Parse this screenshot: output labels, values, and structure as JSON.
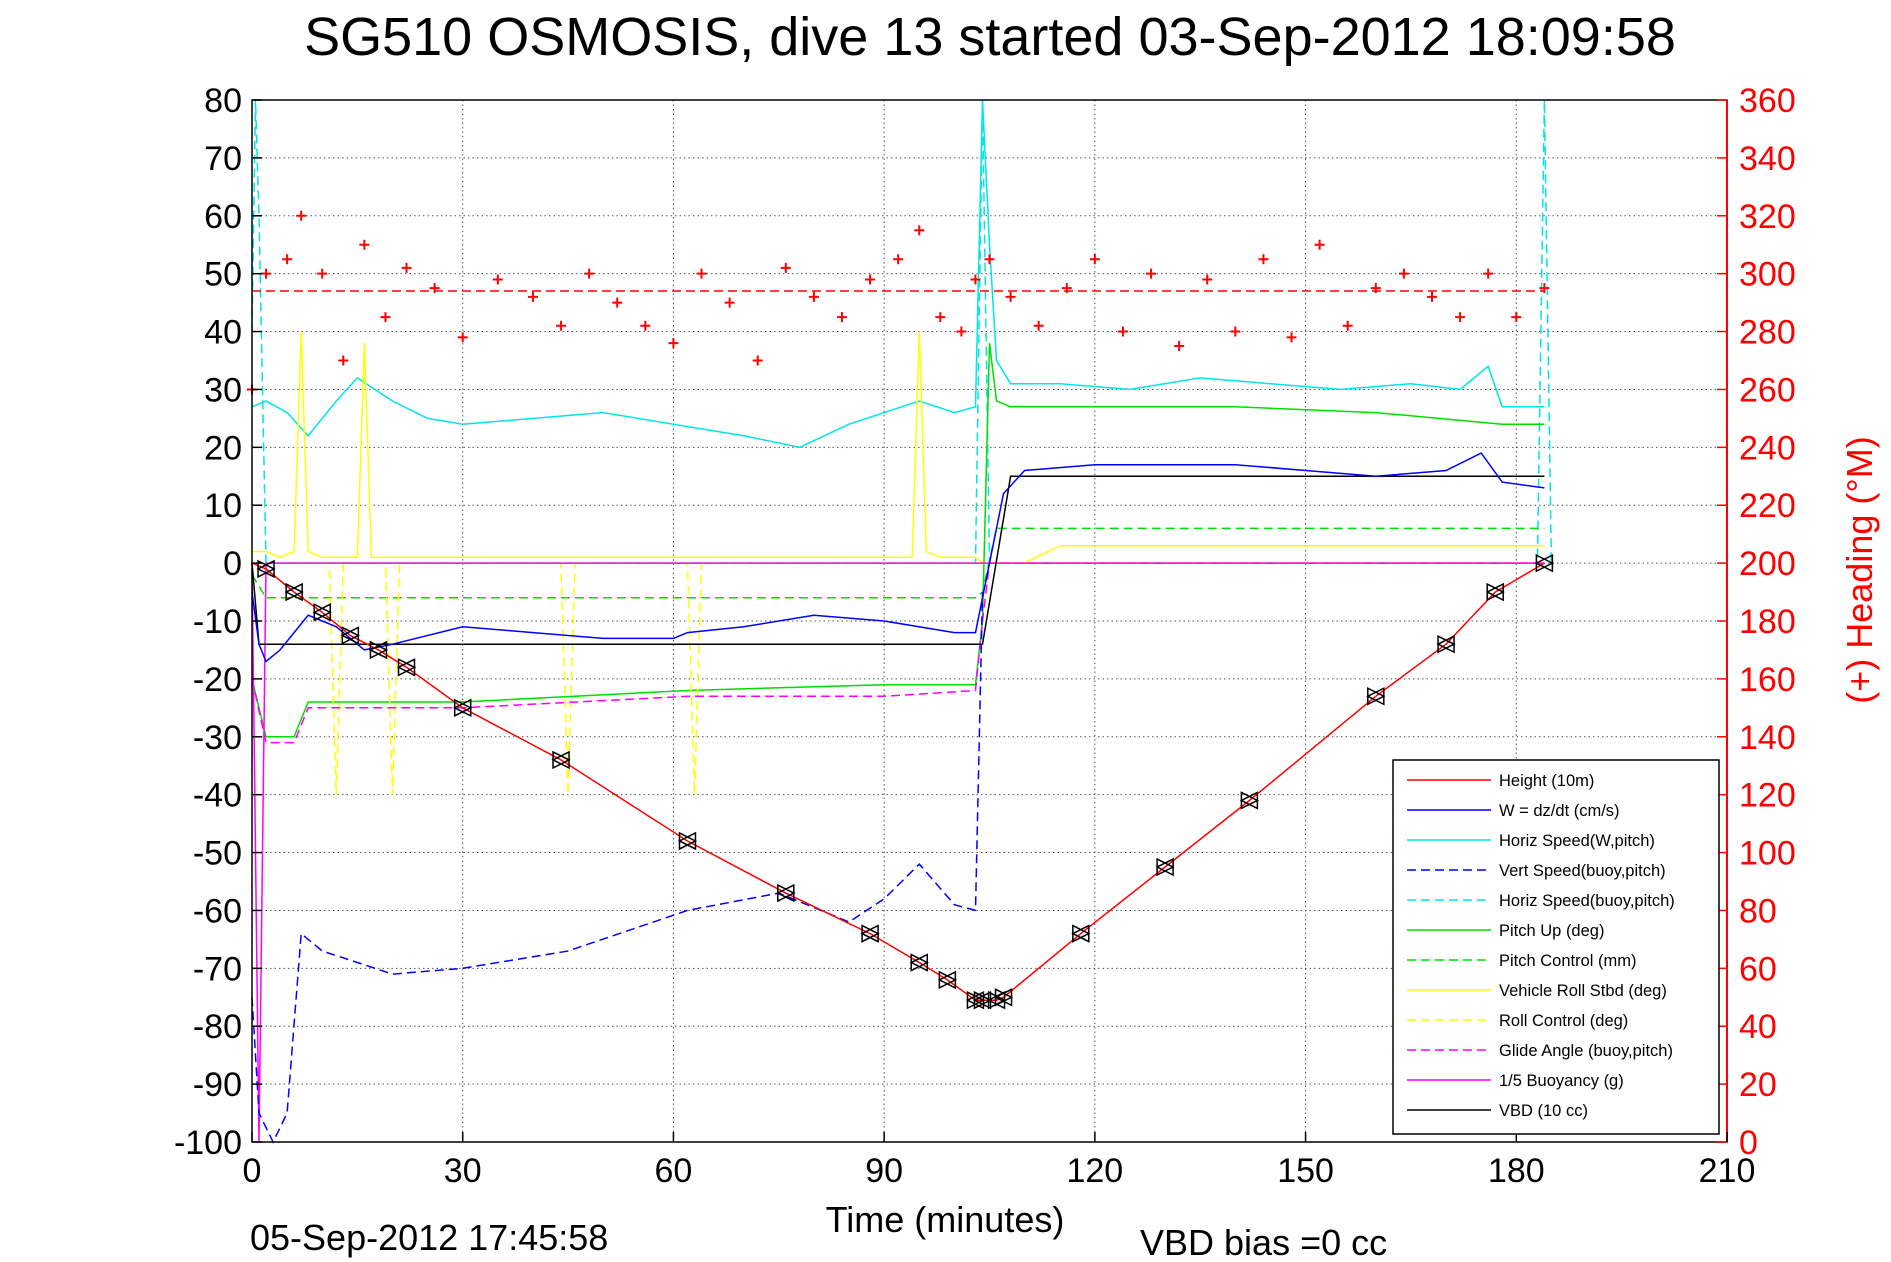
{
  "chart_data": {
    "type": "line",
    "title": "SG510 OSMOSIS, dive 13 started 03-Sep-2012 18:09:58",
    "xlabel": "Time (minutes)",
    "ylabel": "",
    "y2label": "(+) Heading (°M)",
    "footer_left": "05-Sep-2012 17:45:58",
    "footer_right": "VBD bias =0 cc",
    "xlim": [
      0,
      210
    ],
    "ylim": [
      -100,
      80
    ],
    "y2lim": [
      0,
      360
    ],
    "x_ticks": [
      0,
      30,
      60,
      90,
      120,
      150,
      180,
      210
    ],
    "y_ticks": [
      -100,
      -90,
      -80,
      -70,
      -60,
      -50,
      -40,
      -30,
      -20,
      -10,
      0,
      10,
      20,
      30,
      40,
      50,
      60,
      70,
      80
    ],
    "y2_ticks": [
      0,
      20,
      40,
      60,
      80,
      100,
      120,
      140,
      160,
      180,
      200,
      220,
      240,
      260,
      280,
      300,
      320,
      340,
      360
    ],
    "grid": true,
    "legend_position": "bottom-right",
    "colors": {
      "axis": "#000000",
      "right_axis": "#ff0000",
      "grid": "#555555"
    },
    "series": [
      {
        "name": "Height (10m)",
        "color": "#ff0000",
        "dash": "solid",
        "x": [
          0,
          2,
          6,
          10,
          14,
          18,
          22,
          30,
          44,
          62,
          76,
          88,
          95,
          99,
          103,
          104,
          106,
          107,
          118,
          130,
          142,
          160,
          170,
          177,
          184
        ],
        "y": [
          0,
          -1,
          -5,
          -8.5,
          -12.5,
          -15,
          -18,
          -25,
          -34,
          -48,
          -57,
          -64,
          -69,
          -72,
          -75.5,
          -75.5,
          -75.5,
          -75,
          -64,
          -52.5,
          -41,
          -23,
          -14,
          -5,
          0
        ]
      },
      {
        "name": "W = dz/dt (cm/s)",
        "color": "#0000ff",
        "dash": "solid",
        "x": [
          0,
          1,
          2,
          4,
          6,
          8,
          12,
          16,
          20,
          30,
          40,
          50,
          60,
          62,
          70,
          80,
          90,
          100,
          103,
          104,
          105,
          107,
          110,
          120,
          130,
          140,
          150,
          160,
          170,
          175,
          178,
          184
        ],
        "y": [
          -5,
          -14,
          -17,
          -15,
          -12,
          -9,
          -11,
          -15,
          -14,
          -11,
          -12,
          -13,
          -13,
          -12,
          -11,
          -9,
          -10,
          -12,
          -12,
          -6,
          0,
          12,
          16,
          17,
          17,
          17,
          16,
          15,
          16,
          19,
          14,
          13
        ]
      },
      {
        "name": "Horiz Speed(W,pitch)",
        "color": "#00e5e5",
        "dash": "solid",
        "x": [
          0,
          2,
          5,
          8,
          12,
          15,
          20,
          25,
          30,
          40,
          50,
          60,
          70,
          78,
          85,
          95,
          100,
          103,
          104,
          105,
          106,
          108,
          115,
          125,
          135,
          145,
          155,
          165,
          172,
          176,
          178,
          184
        ],
        "y": [
          27,
          28,
          26,
          22,
          28,
          32,
          28,
          25,
          24,
          25,
          26,
          24,
          22,
          20,
          24,
          28,
          26,
          27,
          80,
          55,
          35,
          31,
          31,
          30,
          32,
          31,
          30,
          31,
          30,
          34,
          27,
          27
        ]
      },
      {
        "name": "Vert Speed(buoy,pitch)",
        "color": "#0000ff",
        "dash": "dashed",
        "x": [
          0,
          1,
          3,
          5,
          7,
          10,
          15,
          20,
          30,
          45,
          62,
          75,
          85,
          90,
          95,
          100,
          103,
          104
        ],
        "y": [
          -75,
          -95,
          -100,
          -95,
          -64,
          -67,
          -69,
          -71,
          -70,
          -67,
          -60,
          -57,
          -62,
          -58,
          -52,
          -59,
          -60,
          -5
        ]
      },
      {
        "name": "Horiz Speed(buoy,pitch)",
        "color": "#00e5e5",
        "dash": "dashed",
        "x": [
          0,
          0.5,
          1,
          2,
          103,
          104,
          105,
          183,
          184,
          185
        ],
        "y": [
          40,
          80,
          60,
          0,
          0,
          80,
          0,
          0,
          80,
          0
        ]
      },
      {
        "name": "Pitch Up (deg)",
        "color": "#00dd00",
        "dash": "solid",
        "x": [
          0,
          2,
          6,
          8,
          30,
          62,
          90,
          103,
          104,
          105,
          106,
          108,
          120,
          140,
          160,
          178,
          184
        ],
        "y": [
          -20,
          -30,
          -30,
          -24,
          -24,
          -22,
          -21,
          -21,
          -10,
          38,
          28,
          27,
          27,
          27,
          26,
          24,
          24
        ]
      },
      {
        "name": "Pitch Control (mm)",
        "color": "#00dd00",
        "dash": "dashed",
        "x": [
          0,
          2,
          103,
          104,
          106,
          184
        ],
        "y": [
          -2,
          -6,
          -6,
          -5,
          6,
          6
        ]
      },
      {
        "name": "Vehicle Roll Stbd (deg)",
        "color": "#ffff00",
        "dash": "solid",
        "x": [
          0,
          2,
          4,
          6,
          7,
          8,
          10,
          15,
          16,
          17,
          20,
          94,
          95,
          96,
          98,
          103,
          104,
          110,
          115,
          184
        ],
        "y": [
          2,
          2,
          1,
          2,
          40,
          2,
          1,
          1,
          38,
          1,
          1,
          1,
          40,
          2,
          1,
          1,
          0,
          0,
          3,
          3
        ]
      },
      {
        "name": "Roll Control (deg)",
        "color": "#ffff00",
        "dash": "dashed",
        "x": [
          0,
          11,
          12,
          13,
          19,
          20,
          21,
          44,
          45,
          46,
          62,
          63,
          64,
          103,
          104,
          184
        ],
        "y": [
          0,
          0,
          -40,
          0,
          0,
          -40,
          0,
          0,
          -40,
          0,
          0,
          -40,
          0,
          0,
          0,
          0
        ]
      },
      {
        "name": "Glide Angle (buoy,pitch)",
        "color": "#ff00ff",
        "dash": "dashed",
        "x": [
          0,
          2,
          6,
          8,
          30,
          62,
          90,
          103,
          104,
          105,
          184
        ],
        "y": [
          -20,
          -31,
          -31,
          -25,
          -25,
          -23,
          -23,
          -22,
          -10,
          0,
          0
        ]
      },
      {
        "name": "1/5 Buoyancy (g)",
        "color": "#ff00ff",
        "dash": "solid",
        "x": [
          0,
          1,
          2,
          184
        ],
        "y": [
          0,
          -100,
          0,
          0
        ]
      },
      {
        "name": "VBD (10 cc)",
        "color": "#000000",
        "dash": "solid",
        "x": [
          0,
          1,
          2,
          103,
          104,
          108,
          184
        ],
        "y": [
          0,
          -14,
          -14,
          -14,
          -14,
          15,
          15
        ]
      }
    ],
    "heading": {
      "name": "(+) Heading (°M)",
      "color": "#ff0000",
      "axis": "right",
      "target": 294,
      "x": [
        0,
        2,
        5,
        7,
        10,
        13,
        16,
        19,
        22,
        26,
        30,
        35,
        40,
        44,
        48,
        52,
        56,
        60,
        64,
        68,
        72,
        76,
        80,
        84,
        88,
        92,
        95,
        98,
        101,
        103,
        105,
        108,
        112,
        116,
        120,
        124,
        128,
        132,
        136,
        140,
        144,
        148,
        152,
        156,
        160,
        164,
        168,
        172,
        176,
        180,
        184
      ],
      "y": [
        260,
        300,
        305,
        320,
        300,
        270,
        310,
        285,
        302,
        295,
        278,
        298,
        292,
        282,
        300,
        290,
        282,
        276,
        300,
        290,
        270,
        302,
        292,
        285,
        298,
        305,
        315,
        285,
        280,
        298,
        305,
        292,
        282,
        295,
        305,
        280,
        300,
        275,
        298,
        280,
        305,
        278,
        310,
        282,
        295,
        300,
        292,
        285,
        300,
        285,
        295
      ]
    }
  }
}
